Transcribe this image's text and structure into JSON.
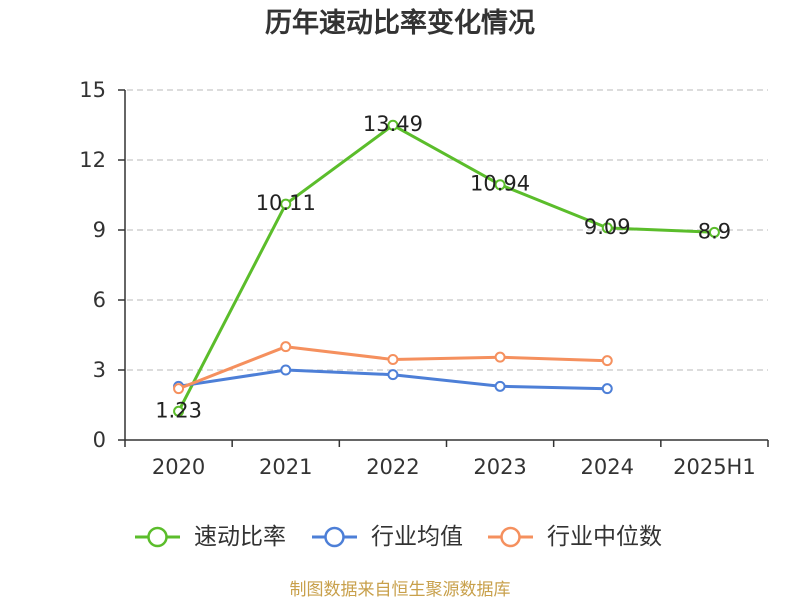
{
  "chart_data": {
    "type": "line",
    "title": "历年速动比率变化情况",
    "categories": [
      "2020",
      "2021",
      "2022",
      "2023",
      "2024",
      "2025H1"
    ],
    "ylim": [
      0,
      15
    ],
    "yticks": [
      0,
      3,
      6,
      9,
      12,
      15
    ],
    "grid": true,
    "legend_position": "bottom",
    "series": [
      {
        "name": "速动比率",
        "color": "#5bbd2b",
        "show_labels": true,
        "values": [
          1.23,
          10.11,
          13.49,
          10.94,
          9.09,
          8.9
        ]
      },
      {
        "name": "行业均值",
        "color": "#4d7fd7",
        "values": [
          2.3,
          3.0,
          2.8,
          2.3,
          2.2,
          null
        ]
      },
      {
        "name": "行业中位数",
        "color": "#f5905e",
        "values": [
          2.2,
          4.0,
          3.45,
          3.55,
          3.4,
          null
        ]
      }
    ]
  },
  "footer": "制图数据来自恒生聚源数据库"
}
